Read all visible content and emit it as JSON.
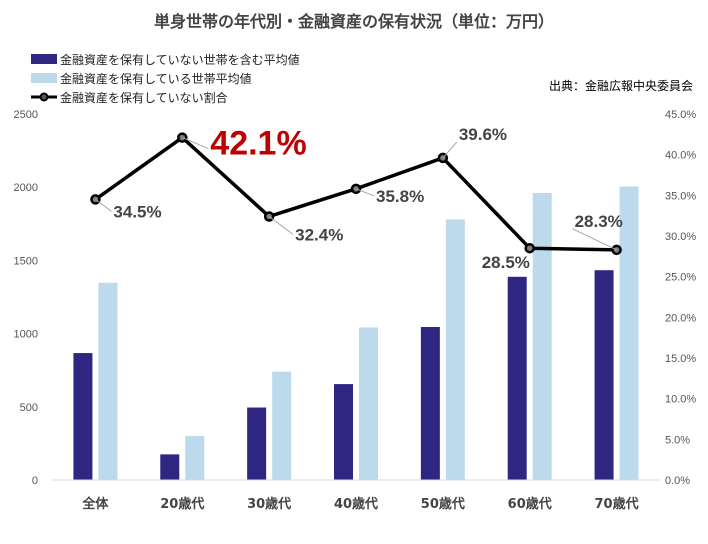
{
  "chart_data": {
    "type": "bar",
    "title": "単身世帯の年代別・金融資産の保有状況（単位：万円）",
    "source": "出典：金融広報中央委員会",
    "categories": [
      "全体",
      "20歳代",
      "30歳代",
      "40歳代",
      "50歳代",
      "60歳代",
      "70歳代"
    ],
    "series": [
      {
        "name": "金融資産を保有していない世帯を含む平均値",
        "kind": "bar",
        "axis": "left",
        "color": "#2E2680",
        "values": [
          867,
          175,
          495,
          655,
          1045,
          1388,
          1433
        ]
      },
      {
        "name": "金融資産を保有している世帯平均値",
        "kind": "bar",
        "axis": "left",
        "color": "#BDD9EC",
        "values": [
          1347,
          300,
          740,
          1042,
          1780,
          1960,
          2005
        ]
      },
      {
        "name": "金融資産を保有していない割合",
        "kind": "line",
        "axis": "right",
        "color": "#000000",
        "values": [
          34.5,
          42.1,
          32.4,
          35.8,
          39.6,
          28.5,
          28.3
        ],
        "labels": [
          "34.5%",
          "42.1%",
          "32.4%",
          "35.8%",
          "39.6%",
          "28.5%",
          "28.3%"
        ]
      }
    ],
    "y_left": {
      "ylim": [
        0,
        2500
      ],
      "ticks": [
        "0",
        "500",
        "1000",
        "1500",
        "2000",
        "2500"
      ]
    },
    "y_right": {
      "ylim": [
        0,
        45
      ],
      "ticks": [
        "0.0%",
        "5.0%",
        "10.0%",
        "15.0%",
        "20.0%",
        "25.0%",
        "30.0%",
        "35.0%",
        "40.0%",
        "45.0%"
      ]
    },
    "highlight_label_index": 1,
    "highlight_color": "#C00000",
    "legend_position": "top-left",
    "grid": false
  }
}
